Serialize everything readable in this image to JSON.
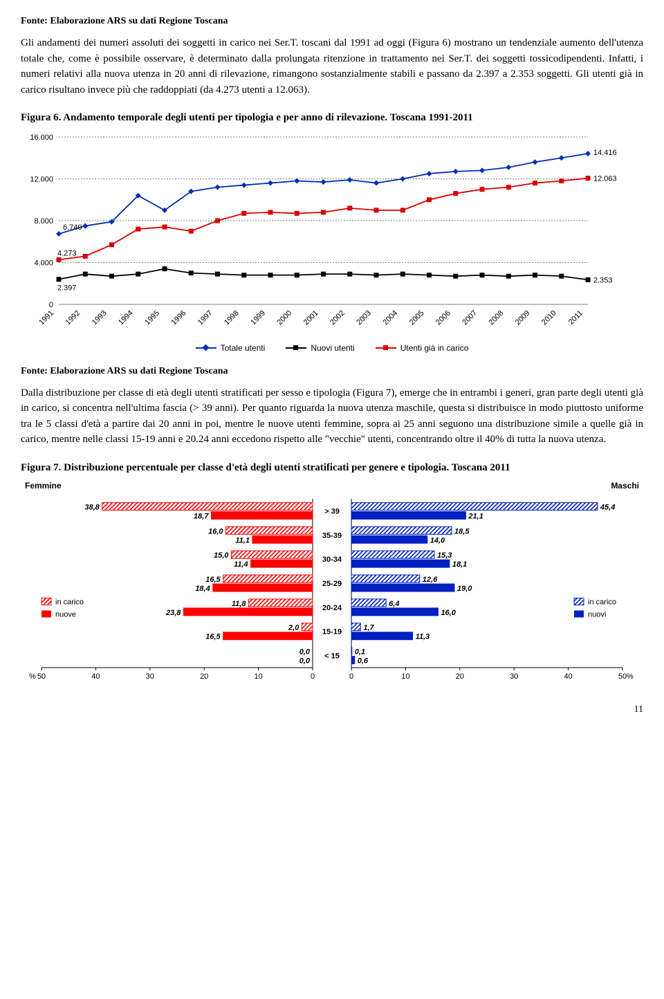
{
  "source_text": "Fonte: Elaborazione ARS su dati Regione Toscana",
  "para1": "Gli andamenti dei numeri assoluti dei soggetti in carico nei Ser.T. toscani dal 1991 ad oggi (Figura 6) mostrano un tendenziale aumento dell'utenza totale che, come è possibile osservare, è determinato dalla prolungata ritenzione in trattamento nei Ser.T. dei soggetti tossicodipendenti. Infatti, i numeri relativi alla nuova utenza in 20 anni di rilevazione, rimangono sostanzialmente stabili e passano da 2.397 a 2.353 soggetti. Gli utenti già in carico risultano invece più che raddoppiati (da 4.273 utenti a 12.063).",
  "fig6_title": "Figura 6. Andamento temporale degli utenti per tipologia e per anno di rilevazione. Toscana 1991-2011",
  "fig6": {
    "y_ticks": [
      "0",
      "4.000",
      "8.000",
      "12.000",
      "16.000"
    ],
    "y_max": 16000,
    "years": [
      "1991",
      "1992",
      "1993",
      "1994",
      "1995",
      "1996",
      "1997",
      "1998",
      "1999",
      "2000",
      "2001",
      "2002",
      "2003",
      "2004",
      "2005",
      "2006",
      "2007",
      "2008",
      "2009",
      "2010",
      "2011"
    ],
    "total": [
      6740,
      7500,
      7900,
      10400,
      9000,
      10800,
      11200,
      11400,
      11600,
      11800,
      11700,
      11900,
      11600,
      12000,
      12500,
      12700,
      12800,
      13100,
      13600,
      14000,
      14416
    ],
    "gia": [
      4273,
      4600,
      5700,
      7200,
      7400,
      7000,
      8000,
      8700,
      8800,
      8700,
      8800,
      9200,
      9000,
      9000,
      10000,
      10600,
      11000,
      11200,
      11600,
      11800,
      12063
    ],
    "nuovi": [
      2397,
      2900,
      2700,
      2900,
      3400,
      3000,
      2900,
      2800,
      2800,
      2800,
      2900,
      2900,
      2800,
      2900,
      2800,
      2700,
      2800,
      2700,
      2800,
      2700,
      2353
    ],
    "labels": {
      "first_total": "6.740",
      "last_total": "14.416",
      "first_gia": "4.273",
      "last_gia": "12.063",
      "first_nuovi": "2.397",
      "last_nuovi": "2.353"
    },
    "colors": {
      "total": "#002db3",
      "gia": "#d90000",
      "nuovi": "#000000"
    },
    "legend": {
      "total": "Totale utenti",
      "nuovi": "Nuovi utenti",
      "gia": "Utenti già in carico"
    }
  },
  "para2": "Dalla distribuzione per classe di età degli utenti stratificati per sesso e tipologia (Figura 7), emerge che in entrambi i generi, gran parte degli utenti già in carico, si concentra nell'ultima fascia (> 39 anni). Per quanto riguarda la nuova utenza maschile, questa si distribuisce in modo piuttosto uniforme tra le 5 classi d'età a partire dai 20 anni in poi, mentre le nuove utenti femmine, sopra ai 25 anni seguono una distribuzione simile a quelle già in carico, mentre nelle classi 15-19 anni e 20.24 anni eccedono rispetto alle \"vecchie\" utenti, concentrando oltre il 40% di tutta la nuova utenza.",
  "fig7_title": "Figura 7. Distribuzione percentuale per classe d'età degli utenti stratificati per genere e tipologia. Toscana 2011",
  "fig7": {
    "header_left": "Femmine",
    "header_right": "Maschi",
    "age_bands": [
      "> 39",
      "35-39",
      "30-34",
      "25-29",
      "20-24",
      "15-19",
      "< 15"
    ],
    "x_max": 50,
    "x_ticks_left": [
      "50",
      "40",
      "30",
      "20",
      "10",
      "0"
    ],
    "x_ticks_right": [
      "0",
      "10",
      "20",
      "30",
      "40",
      "50"
    ],
    "femmine": {
      "in_carico": [
        38.8,
        16.0,
        15.0,
        16.5,
        11.8,
        2.0,
        0.0
      ],
      "nuove": [
        18.7,
        11.1,
        11.4,
        18.4,
        23.8,
        16.5,
        0.0
      ]
    },
    "maschi": {
      "in_carico": [
        45.4,
        18.5,
        15.3,
        12.6,
        6.4,
        1.7,
        0.1
      ],
      "nuovi": [
        21.1,
        14.0,
        18.1,
        19.0,
        16.0,
        11.3,
        0.6
      ]
    },
    "legend_left": {
      "in_carico": "in carico",
      "nuove": "nuove"
    },
    "legend_right": {
      "in_carico": "in carico",
      "nuovi": "nuovi"
    },
    "colors": {
      "f_in": "#ff0000",
      "f_nuove": "#ff0000",
      "m_in": "#0020c0",
      "m_nuovi": "#0020c0"
    },
    "pct_label": "%"
  },
  "pagenum": "11"
}
